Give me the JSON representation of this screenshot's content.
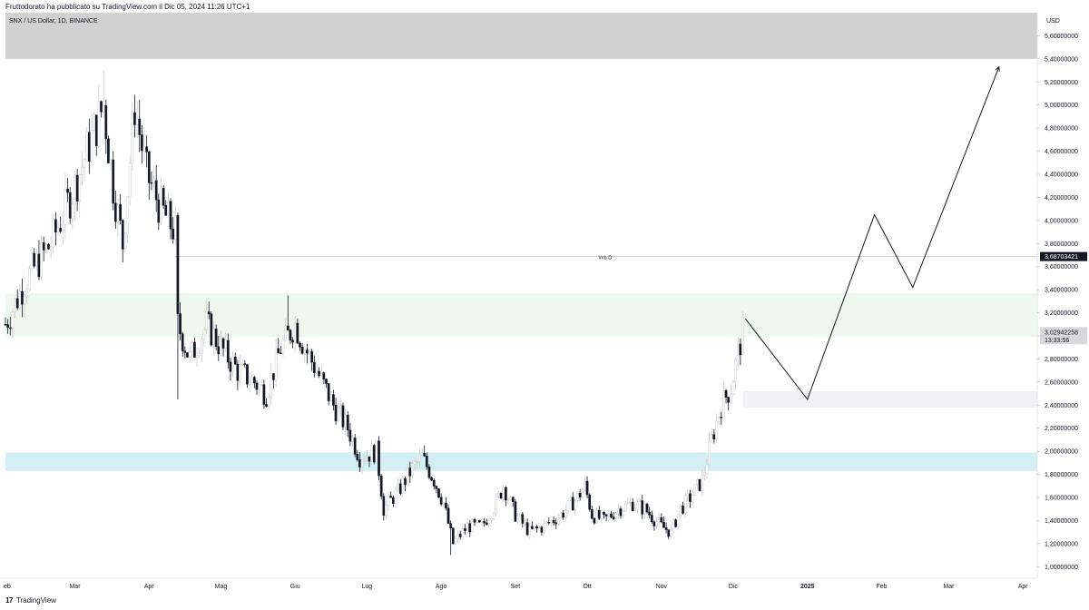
{
  "header": {
    "published_by": "Fruttodorato ha pubblicato su TradingView.com il Dic 05, 2024 11:26 UTC+1"
  },
  "chart_data": {
    "type": "candlestick",
    "symbol_label": "SNX / US Dollar, 1D, BINANCE",
    "currency": "USD",
    "ylim": [
      0.9,
      5.8
    ],
    "y_ticks": [
      "1,00000000",
      "1,20000000",
      "1,40000000",
      "1,60000000",
      "1,80000000",
      "2,00000000",
      "2,20000000",
      "2,40000000",
      "2,60000000",
      "2,80000000",
      "3,00000000",
      "3,20000000",
      "3,40000000",
      "3,60000000",
      "3,80000000",
      "4,00000000",
      "4,20000000",
      "4,40000000",
      "4,60000000",
      "4,80000000",
      "5,00000000",
      "5,20000000",
      "5,40000000",
      "5,60000000"
    ],
    "y_tick_values": [
      1.0,
      1.2,
      1.4,
      1.6,
      1.8,
      2.0,
      2.2,
      2.4,
      2.6,
      2.8,
      3.0,
      3.2,
      3.4,
      3.6,
      3.8,
      4.0,
      4.2,
      4.4,
      4.6,
      4.8,
      5.0,
      5.2,
      5.4,
      5.6
    ],
    "x_ticks": [
      {
        "label": "eb",
        "date": "2024-02-01",
        "bold": false
      },
      {
        "label": "Mar",
        "date": "2024-03-01",
        "bold": false
      },
      {
        "label": "Apr",
        "date": "2024-04-01",
        "bold": false
      },
      {
        "label": "Mag",
        "date": "2024-05-01",
        "bold": false
      },
      {
        "label": "Giu",
        "date": "2024-06-01",
        "bold": false
      },
      {
        "label": "Lug",
        "date": "2024-07-01",
        "bold": false
      },
      {
        "label": "Ago",
        "date": "2024-08-01",
        "bold": false
      },
      {
        "label": "Set",
        "date": "2024-09-01",
        "bold": false
      },
      {
        "label": "Ott",
        "date": "2024-10-01",
        "bold": false
      },
      {
        "label": "Nov",
        "date": "2024-11-01",
        "bold": false
      },
      {
        "label": "Dic",
        "date": "2024-12-01",
        "bold": false
      },
      {
        "label": "2025",
        "date": "2025-01-01",
        "bold": true
      },
      {
        "label": "Feb",
        "date": "2025-02-01",
        "bold": false
      },
      {
        "label": "Mar",
        "date": "2025-03-01",
        "bold": false
      },
      {
        "label": "Apr",
        "date": "2025-04-01",
        "bold": false
      }
    ],
    "xlim": [
      "2024-02-01",
      "2025-04-07"
    ],
    "path_points": [
      {
        "date": "2024-02-01",
        "close": 3.1
      },
      {
        "date": "2024-02-10",
        "close": 3.5
      },
      {
        "date": "2024-02-20",
        "close": 3.8
      },
      {
        "date": "2024-03-01",
        "close": 4.3
      },
      {
        "date": "2024-03-06",
        "close": 4.6
      },
      {
        "date": "2024-03-13",
        "close": 5.0
      },
      {
        "date": "2024-03-17",
        "close": 4.3
      },
      {
        "date": "2024-03-21",
        "close": 3.8
      },
      {
        "date": "2024-03-26",
        "close": 5.0
      },
      {
        "date": "2024-03-31",
        "close": 4.4
      },
      {
        "date": "2024-04-06",
        "close": 4.1
      },
      {
        "date": "2024-04-12",
        "close": 3.9
      },
      {
        "date": "2024-04-13",
        "close": 3.1
      },
      {
        "date": "2024-04-18",
        "close": 2.8
      },
      {
        "date": "2024-04-25",
        "close": 3.1
      },
      {
        "date": "2024-05-01",
        "close": 2.9
      },
      {
        "date": "2024-05-08",
        "close": 2.7
      },
      {
        "date": "2024-05-15",
        "close": 2.6
      },
      {
        "date": "2024-05-20",
        "close": 2.5
      },
      {
        "date": "2024-05-26",
        "close": 2.9
      },
      {
        "date": "2024-06-01",
        "close": 3.1
      },
      {
        "date": "2024-06-05",
        "close": 2.9
      },
      {
        "date": "2024-06-10",
        "close": 2.7
      },
      {
        "date": "2024-06-17",
        "close": 2.4
      },
      {
        "date": "2024-06-23",
        "close": 2.2
      },
      {
        "date": "2024-06-28",
        "close": 1.95
      },
      {
        "date": "2024-07-05",
        "close": 2.0
      },
      {
        "date": "2024-07-08",
        "close": 1.5
      },
      {
        "date": "2024-07-14",
        "close": 1.65
      },
      {
        "date": "2024-07-20",
        "close": 1.85
      },
      {
        "date": "2024-07-24",
        "close": 1.95
      },
      {
        "date": "2024-07-29",
        "close": 1.75
      },
      {
        "date": "2024-08-02",
        "close": 1.55
      },
      {
        "date": "2024-08-06",
        "close": 1.2
      },
      {
        "date": "2024-08-12",
        "close": 1.35
      },
      {
        "date": "2024-08-18",
        "close": 1.35
      },
      {
        "date": "2024-08-24",
        "close": 1.55
      },
      {
        "date": "2024-08-27",
        "close": 1.7
      },
      {
        "date": "2024-09-01",
        "close": 1.45
      },
      {
        "date": "2024-09-07",
        "close": 1.3
      },
      {
        "date": "2024-09-13",
        "close": 1.35
      },
      {
        "date": "2024-09-20",
        "close": 1.45
      },
      {
        "date": "2024-09-27",
        "close": 1.6
      },
      {
        "date": "2024-09-30",
        "close": 1.7
      },
      {
        "date": "2024-10-03",
        "close": 1.45
      },
      {
        "date": "2024-10-08",
        "close": 1.4
      },
      {
        "date": "2024-10-14",
        "close": 1.5
      },
      {
        "date": "2024-10-20",
        "close": 1.55
      },
      {
        "date": "2024-10-25",
        "close": 1.5
      },
      {
        "date": "2024-11-01",
        "close": 1.35
      },
      {
        "date": "2024-11-05",
        "close": 1.3
      },
      {
        "date": "2024-11-09",
        "close": 1.5
      },
      {
        "date": "2024-11-13",
        "close": 1.6
      },
      {
        "date": "2024-11-18",
        "close": 1.75
      },
      {
        "date": "2024-11-22",
        "close": 2.1
      },
      {
        "date": "2024-11-26",
        "close": 2.4
      },
      {
        "date": "2024-11-30",
        "close": 2.55
      },
      {
        "date": "2024-12-03",
        "close": 2.85
      },
      {
        "date": "2024-12-05",
        "close": 3.03
      }
    ],
    "current_price": {
      "value": 3.02942258,
      "label": "3,02942258",
      "countdown": "13:33:56"
    },
    "level_line": {
      "value": 3.68703421,
      "label": "3,68703421",
      "name": "imb D"
    },
    "zones": [
      {
        "name": "supply-zone-top",
        "y_from": 5.4,
        "y_to": 5.8,
        "x_from": "2024-02-01",
        "x_to": "2025-04-07",
        "color": "#d1d1d1"
      },
      {
        "name": "resistance-zone",
        "y_from": 2.99,
        "y_to": 3.37,
        "x_from": "2024-02-01",
        "x_to": "2025-04-07",
        "color": "#eef8ee"
      },
      {
        "name": "support-zone-cyan",
        "y_from": 1.83,
        "y_to": 1.99,
        "x_from": "2024-02-01",
        "x_to": "2025-04-07",
        "color": "#d3eff4"
      },
      {
        "name": "demand-zone-small",
        "y_from": 2.38,
        "y_to": 2.52,
        "x_from": "2024-12-05",
        "x_to": "2025-04-07",
        "color": "#f2f2f6"
      }
    ],
    "projection": [
      {
        "date": "2024-12-06",
        "value": 3.15
      },
      {
        "date": "2025-01-01",
        "value": 2.45
      },
      {
        "date": "2025-01-29",
        "value": 4.05
      },
      {
        "date": "2025-02-14",
        "value": 3.42
      },
      {
        "date": "2025-03-22",
        "value": 5.33
      }
    ],
    "colors": {
      "candle_up": "#cccccc",
      "candle_down": "#131722",
      "axis_text": "#131722",
      "level_label_bg": "#131722",
      "price_label_bg": "#d9d9dd"
    }
  },
  "footer": {
    "brand": "TradingView",
    "logo_glyph": "17"
  }
}
